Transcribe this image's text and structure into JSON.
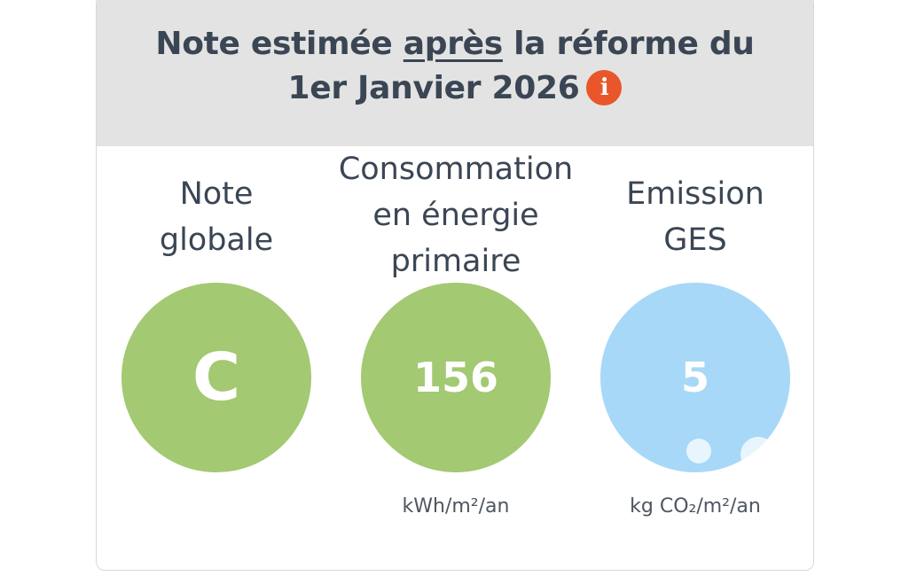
{
  "header": {
    "title_part1": "Note estimée",
    "title_emphasis": "après",
    "title_part2": "la réforme du",
    "title_line2": "1er Janvier 2026",
    "info_icon": "info-icon",
    "info_glyph": "i",
    "info_color": "#e8562a"
  },
  "metrics": [
    {
      "title_lines": [
        "Note",
        "globale"
      ],
      "value": "C",
      "unit": "",
      "color": "#a3c972"
    },
    {
      "title_lines": [
        "Consommation",
        "en énergie",
        "primaire"
      ],
      "value": "156",
      "unit": "kWh/m²/an",
      "color": "#a3c972"
    },
    {
      "title_lines": [
        "Emission",
        "GES"
      ],
      "value": "5",
      "unit": "kg CO₂/m²/an",
      "color": "#a7d8f8"
    }
  ]
}
